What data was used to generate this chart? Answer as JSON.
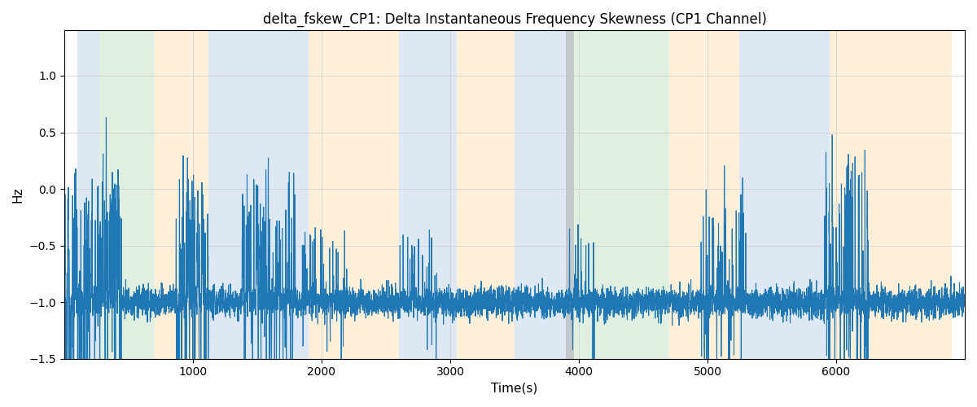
{
  "title": "delta_fskew_CP1: Delta Instantaneous Frequency Skewness (CP1 Channel)",
  "xlabel": "Time(s)",
  "ylabel": "Hz",
  "xlim": [
    0,
    7000
  ],
  "ylim": [
    -1.5,
    1.4
  ],
  "line_color": "#1f77b4",
  "line_width": 0.8,
  "background_color": "#ffffff",
  "yticks": [
    -1.5,
    -1.0,
    -0.5,
    0.0,
    0.5,
    1.0
  ],
  "xticks": [
    1000,
    2000,
    3000,
    4000,
    5000,
    6000
  ],
  "colored_bands": [
    {
      "xmin": 100,
      "xmax": 270,
      "color": "#aec6e8",
      "alpha": 0.4
    },
    {
      "xmin": 270,
      "xmax": 700,
      "color": "#b2d8b2",
      "alpha": 0.4
    },
    {
      "xmin": 700,
      "xmax": 1120,
      "color": "#fdd9a0",
      "alpha": 0.4
    },
    {
      "xmin": 1120,
      "xmax": 1900,
      "color": "#aec6e8",
      "alpha": 0.4
    },
    {
      "xmin": 1900,
      "xmax": 2600,
      "color": "#fdd9a0",
      "alpha": 0.4
    },
    {
      "xmin": 2600,
      "xmax": 3050,
      "color": "#aec6e8",
      "alpha": 0.4
    },
    {
      "xmin": 3050,
      "xmax": 3500,
      "color": "#fdd9a0",
      "alpha": 0.4
    },
    {
      "xmin": 3500,
      "xmax": 3700,
      "color": "#aec6e8",
      "alpha": 0.4
    },
    {
      "xmin": 3700,
      "xmax": 3950,
      "color": "#aec6e8",
      "alpha": 0.4
    },
    {
      "xmin": 3950,
      "xmax": 4700,
      "color": "#b2d8b2",
      "alpha": 0.4
    },
    {
      "xmin": 4700,
      "xmax": 5250,
      "color": "#fdd9a0",
      "alpha": 0.4
    },
    {
      "xmin": 5250,
      "xmax": 5950,
      "color": "#aec6e8",
      "alpha": 0.4
    },
    {
      "xmin": 5950,
      "xmax": 6900,
      "color": "#fdd9a0",
      "alpha": 0.4
    }
  ],
  "seed": 42,
  "n_points": 7000,
  "thin_bands": [
    {
      "xmin": 3900,
      "xmax": 3960,
      "color": "#aaaaaa",
      "alpha": 0.5
    }
  ]
}
